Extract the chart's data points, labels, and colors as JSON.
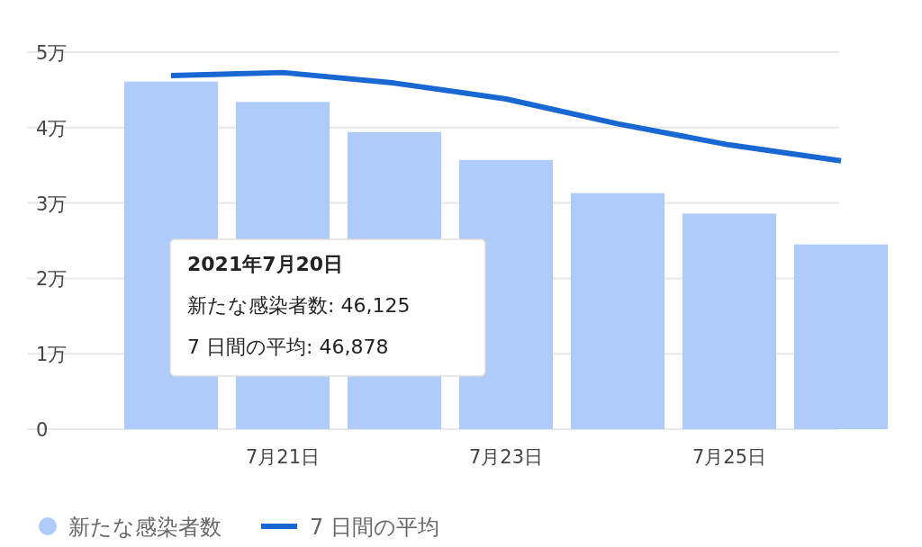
{
  "chart_data": {
    "type": "bar",
    "categories": [
      null,
      "7月21日",
      null,
      "7月23日",
      null,
      "7月25日",
      null
    ],
    "series": [
      {
        "name": "新たな感染者数",
        "color": "#aecbfa",
        "values": [
          4.61,
          4.34,
          3.94,
          3.57,
          3.13,
          2.86,
          2.45
        ]
      },
      {
        "name": "7 日間の平均",
        "type": "line",
        "color": "#1967d2",
        "values": [
          4.69,
          4.73,
          4.59,
          4.38,
          4.05,
          3.77,
          3.56
        ]
      }
    ],
    "ylim": [
      0,
      5
    ],
    "yticks": [
      0,
      {
        "value": 1,
        "label": "1万"
      },
      {
        "value": 2,
        "label": "2万"
      },
      {
        "value": 3,
        "label": "3万"
      },
      {
        "value": 4,
        "label": "4万"
      },
      {
        "value": 5,
        "label": "5万"
      }
    ],
    "grid": "y",
    "legend": "bottom left",
    "annotations": [
      "2021年7月20日",
      "新たな感染者数: 46,125",
      "7 日間の平均: 46,878"
    ]
  }
}
